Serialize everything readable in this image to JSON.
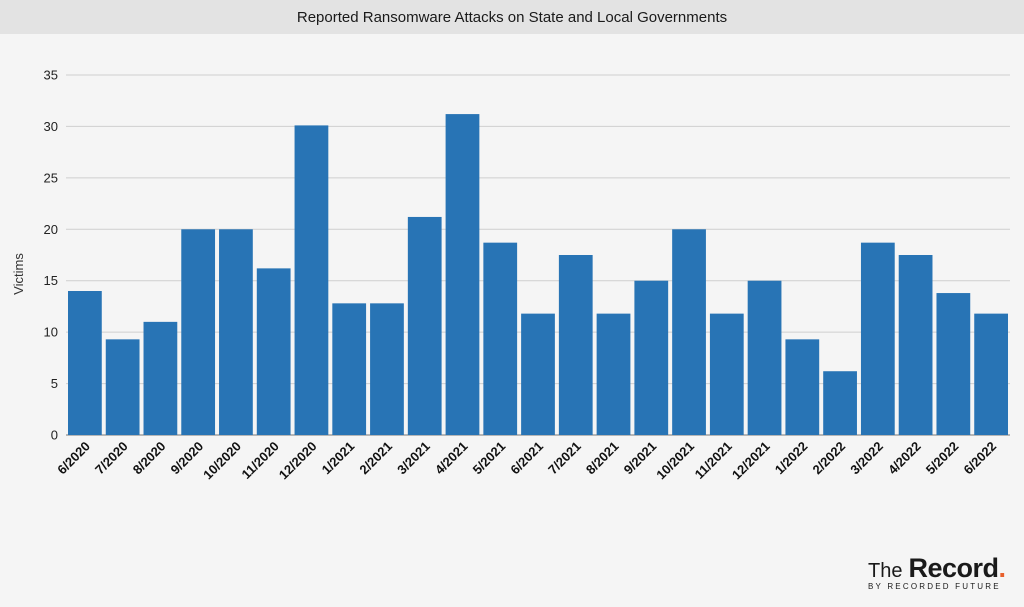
{
  "header": {
    "title": "Reported Ransomware Attacks on State and Local Governments"
  },
  "chart_data": {
    "type": "bar",
    "title": "Reported Ransomware Attacks on State and Local Governments",
    "xlabel": "",
    "ylabel": "Victims",
    "ylim": [
      0,
      35
    ],
    "yticks": [
      0,
      5,
      10,
      15,
      20,
      25,
      30,
      35
    ],
    "grid": true,
    "bar_color": "#2874b5",
    "categories": [
      "6/2020",
      "7/2020",
      "8/2020",
      "9/2020",
      "10/2020",
      "11/2020",
      "12/2020",
      "1/2021",
      "2/2021",
      "3/2021",
      "4/2021",
      "5/2021",
      "6/2021",
      "7/2021",
      "8/2021",
      "9/2021",
      "10/2021",
      "11/2021",
      "12/2021",
      "1/2022",
      "2/2022",
      "3/2022",
      "4/2022",
      "5/2022",
      "6/2022"
    ],
    "values": [
      14,
      9.3,
      11,
      20,
      20,
      16.2,
      30.1,
      12.8,
      12.8,
      21.2,
      31.2,
      18.7,
      11.8,
      17.5,
      11.8,
      15,
      20,
      11.8,
      15,
      9.3,
      6.2,
      18.7,
      17.5,
      13.8,
      11.8
    ]
  },
  "brand": {
    "the": "The",
    "record": "Record",
    "dot": ".",
    "sub": "BY RECORDED FUTURE"
  }
}
